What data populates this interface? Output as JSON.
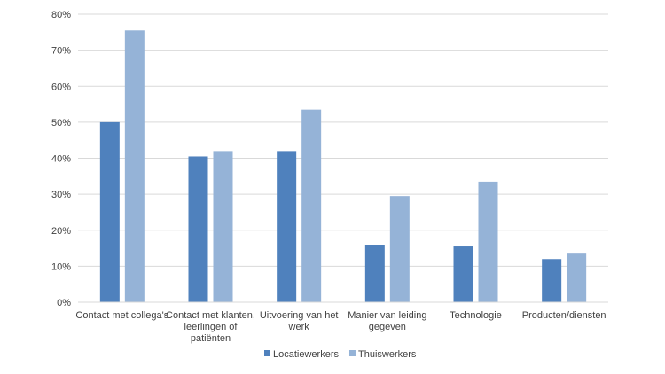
{
  "chart_data": {
    "type": "bar",
    "categories": [
      [
        "Contact met collega's"
      ],
      [
        "Contact met klanten,",
        "leerlingen of",
        "patiënten"
      ],
      [
        "Uitvoering van het",
        "werk"
      ],
      [
        "Manier van leiding",
        "gegeven"
      ],
      [
        "Technologie"
      ],
      [
        "Producten/diensten"
      ]
    ],
    "series": [
      {
        "name": "Locatiewerkers",
        "color": "#4f81bd",
        "values": [
          50,
          40.5,
          42,
          16,
          15.5,
          12
        ]
      },
      {
        "name": "Thuiswerkers",
        "color": "#95b3d7",
        "values": [
          75.5,
          42,
          53.5,
          29.5,
          33.5,
          13.5
        ]
      }
    ],
    "ylim": [
      0,
      80
    ],
    "yticks": [
      "0%",
      "10%",
      "20%",
      "30%",
      "40%",
      "50%",
      "60%",
      "70%",
      "80%"
    ],
    "grid": true,
    "legend_position": "bottom"
  }
}
